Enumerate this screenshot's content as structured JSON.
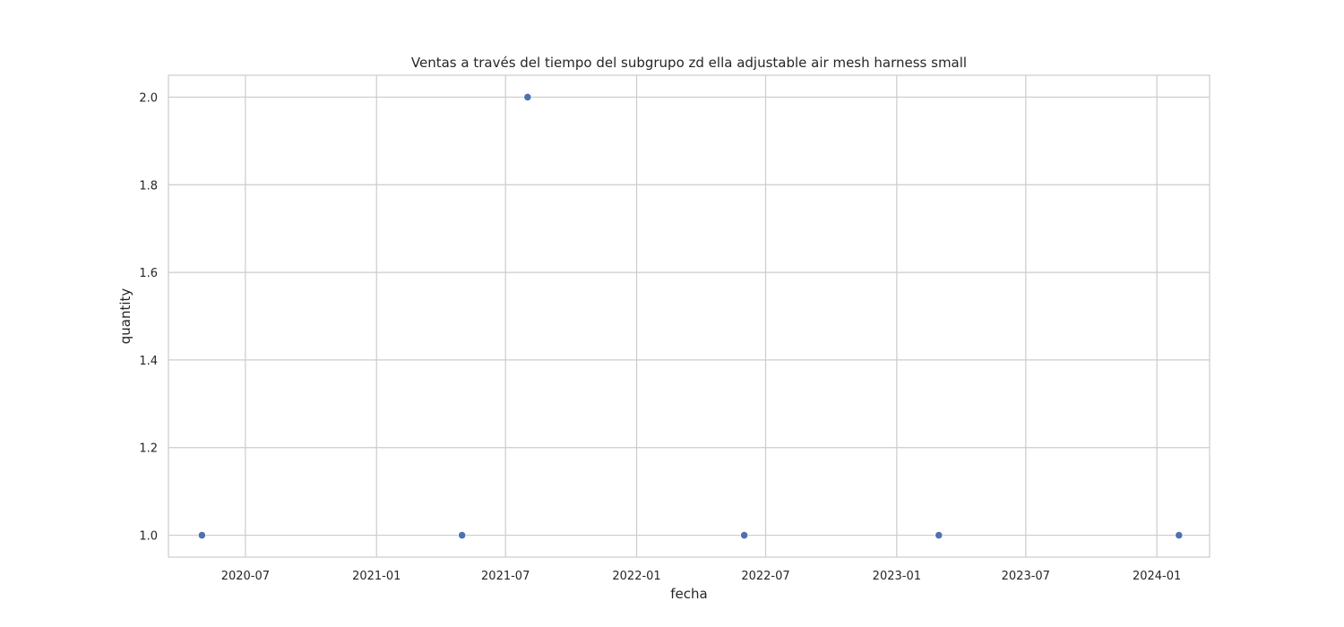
{
  "chart_data": {
    "type": "scatter",
    "title": "Ventas a través del tiempo del subgrupo zd ella adjustable air mesh harness small",
    "xlabel": "fecha",
    "ylabel": "quantity",
    "x_axis_type": "date",
    "xlim": [
      "2020-03-15",
      "2024-03-15"
    ],
    "ylim": [
      0.95,
      2.05
    ],
    "x_ticks": [
      {
        "value": "2020-07-01",
        "label": "2020-07"
      },
      {
        "value": "2021-01-01",
        "label": "2021-01"
      },
      {
        "value": "2021-07-01",
        "label": "2021-07"
      },
      {
        "value": "2022-01-01",
        "label": "2022-01"
      },
      {
        "value": "2022-07-01",
        "label": "2022-07"
      },
      {
        "value": "2023-01-01",
        "label": "2023-01"
      },
      {
        "value": "2023-07-01",
        "label": "2023-07"
      },
      {
        "value": "2024-01-01",
        "label": "2024-01"
      }
    ],
    "y_ticks": [
      {
        "value": 1.0,
        "label": "1.0"
      },
      {
        "value": 1.2,
        "label": "1.2"
      },
      {
        "value": 1.4,
        "label": "1.4"
      },
      {
        "value": 1.6,
        "label": "1.6"
      },
      {
        "value": 1.8,
        "label": "1.8"
      },
      {
        "value": 2.0,
        "label": "2.0"
      }
    ],
    "grid": true,
    "points": [
      {
        "x": "2020-05-01",
        "y": 1
      },
      {
        "x": "2021-05-01",
        "y": 1
      },
      {
        "x": "2021-08-01",
        "y": 2
      },
      {
        "x": "2022-06-01",
        "y": 1
      },
      {
        "x": "2023-03-01",
        "y": 1
      },
      {
        "x": "2024-02-01",
        "y": 1
      }
    ],
    "colors": {
      "marker": "#4c72b0",
      "grid": "#cccccc",
      "frame": "#cccccc"
    }
  }
}
